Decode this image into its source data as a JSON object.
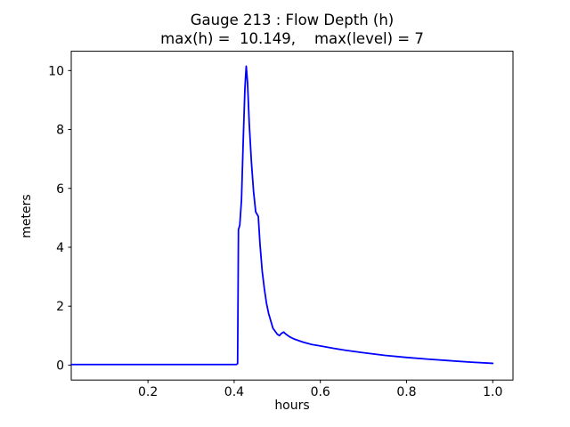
{
  "chart_data": {
    "type": "line",
    "title": "Gauge 213 : Flow Depth (h)",
    "subtitle": "max(h) =  10.149,    max(level) = 7",
    "xlabel": "hours",
    "ylabel": "meters",
    "max_h": 10.149,
    "max_level": 7,
    "xlim": [
      0.022,
      1.047
    ],
    "ylim": [
      -0.507,
      10.656
    ],
    "grid": false,
    "legend": "none",
    "line_color": "#0000ff",
    "frame_color": "#000000",
    "x_ticks": [
      {
        "value": 0.2,
        "label": "0.2"
      },
      {
        "value": 0.4,
        "label": "0.4"
      },
      {
        "value": 0.6,
        "label": "0.6"
      },
      {
        "value": 0.8,
        "label": "0.8"
      },
      {
        "value": 1.0,
        "label": "1.0"
      }
    ],
    "y_ticks": [
      {
        "value": 0,
        "label": "0"
      },
      {
        "value": 2,
        "label": "2"
      },
      {
        "value": 4,
        "label": "4"
      },
      {
        "value": 6,
        "label": "6"
      },
      {
        "value": 8,
        "label": "8"
      },
      {
        "value": 10,
        "label": "10"
      }
    ],
    "series": [
      {
        "name": "flow-depth",
        "x": [
          0.022,
          0.05,
          0.1,
          0.15,
          0.2,
          0.25,
          0.3,
          0.35,
          0.405,
          0.408,
          0.41,
          0.413,
          0.417,
          0.421,
          0.425,
          0.428,
          0.431,
          0.435,
          0.44,
          0.445,
          0.45,
          0.456,
          0.46,
          0.465,
          0.47,
          0.475,
          0.48,
          0.49,
          0.5,
          0.505,
          0.51,
          0.515,
          0.52,
          0.53,
          0.54,
          0.56,
          0.58,
          0.6,
          0.63,
          0.66,
          0.7,
          0.75,
          0.8,
          0.85,
          0.9,
          0.95,
          1.0
        ],
        "y": [
          0.02,
          0.02,
          0.02,
          0.02,
          0.02,
          0.02,
          0.02,
          0.02,
          0.02,
          0.05,
          4.6,
          4.75,
          5.6,
          7.6,
          9.4,
          10.149,
          9.6,
          8.2,
          6.9,
          5.9,
          5.2,
          5.05,
          4.1,
          3.2,
          2.6,
          2.1,
          1.75,
          1.25,
          1.05,
          1.0,
          1.08,
          1.12,
          1.05,
          0.95,
          0.88,
          0.78,
          0.7,
          0.65,
          0.57,
          0.5,
          0.42,
          0.33,
          0.26,
          0.2,
          0.15,
          0.1,
          0.06
        ]
      }
    ]
  }
}
